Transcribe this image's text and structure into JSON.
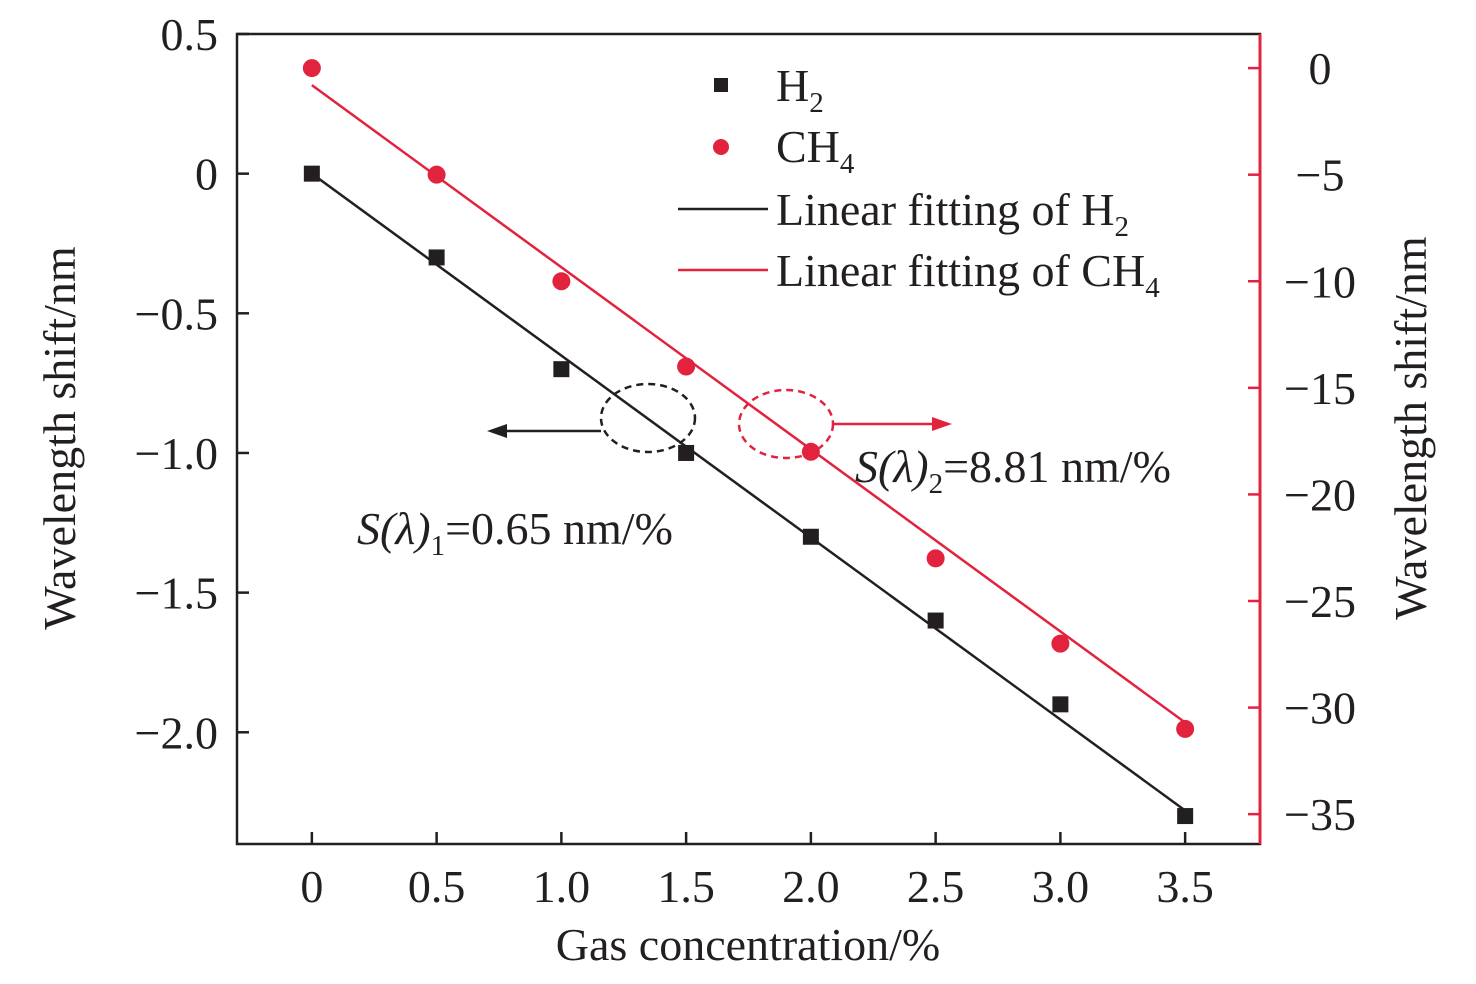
{
  "chart_data": {
    "type": "scatter",
    "xlabel": "Gas concentration/%",
    "ylabel_left": "Wavelength shift/nm",
    "ylabel_right": "Wavelength shift/nm",
    "xlim": [
      -0.3,
      3.8
    ],
    "ylim_left": [
      -2.4,
      0.5
    ],
    "ylim_right": [
      -36.4,
      1.6
    ],
    "x_ticks": [
      "0",
      "0.5",
      "1.0",
      "1.5",
      "2.0",
      "2.5",
      "3.0",
      "3.5"
    ],
    "y_left_ticks": [
      "0.5",
      "0",
      "−0.5",
      "−1.0",
      "−1.5",
      "−2.0"
    ],
    "y_right_ticks": [
      "0",
      "−5",
      "−10",
      "−15",
      "−20",
      "−25",
      "−30",
      "−35"
    ],
    "series": [
      {
        "name": "H",
        "name_sub": "2",
        "axis": "left",
        "marker": "square",
        "color": "#231f20",
        "x": [
          0,
          0.5,
          1.0,
          1.5,
          2.0,
          2.5,
          3.0,
          3.5
        ],
        "y": [
          0,
          -0.3,
          -0.7,
          -1.0,
          -1.3,
          -1.6,
          -1.9,
          -2.3
        ]
      },
      {
        "name": "CH",
        "name_sub": "4",
        "axis": "right",
        "marker": "circle",
        "color": "#e2233e",
        "x": [
          0,
          0.5,
          1.0,
          1.5,
          2.0,
          2.5,
          3.0,
          3.5
        ],
        "y": [
          0,
          -5,
          -10,
          -14,
          -18,
          -23,
          -27,
          -31
        ]
      }
    ],
    "fits": [
      {
        "name": "Linear fitting of H",
        "name_sub": "2",
        "axis": "left",
        "color": "#231f20",
        "x": [
          0,
          3.5
        ],
        "y": [
          0,
          -2.28
        ]
      },
      {
        "name": "Linear fitting of CH",
        "name_sub": "4",
        "axis": "right",
        "color": "#e2233e",
        "x": [
          0,
          3.5
        ],
        "y": [
          -0.8,
          -30.7
        ]
      }
    ],
    "annotations": [
      {
        "prefix": "S(λ)",
        "sub": "1",
        "text": "=0.65 nm/%"
      },
      {
        "prefix": "S(λ)",
        "sub": "2",
        "text": "=8.81 nm/%"
      }
    ],
    "legend_position": "top-right",
    "grid": false
  }
}
